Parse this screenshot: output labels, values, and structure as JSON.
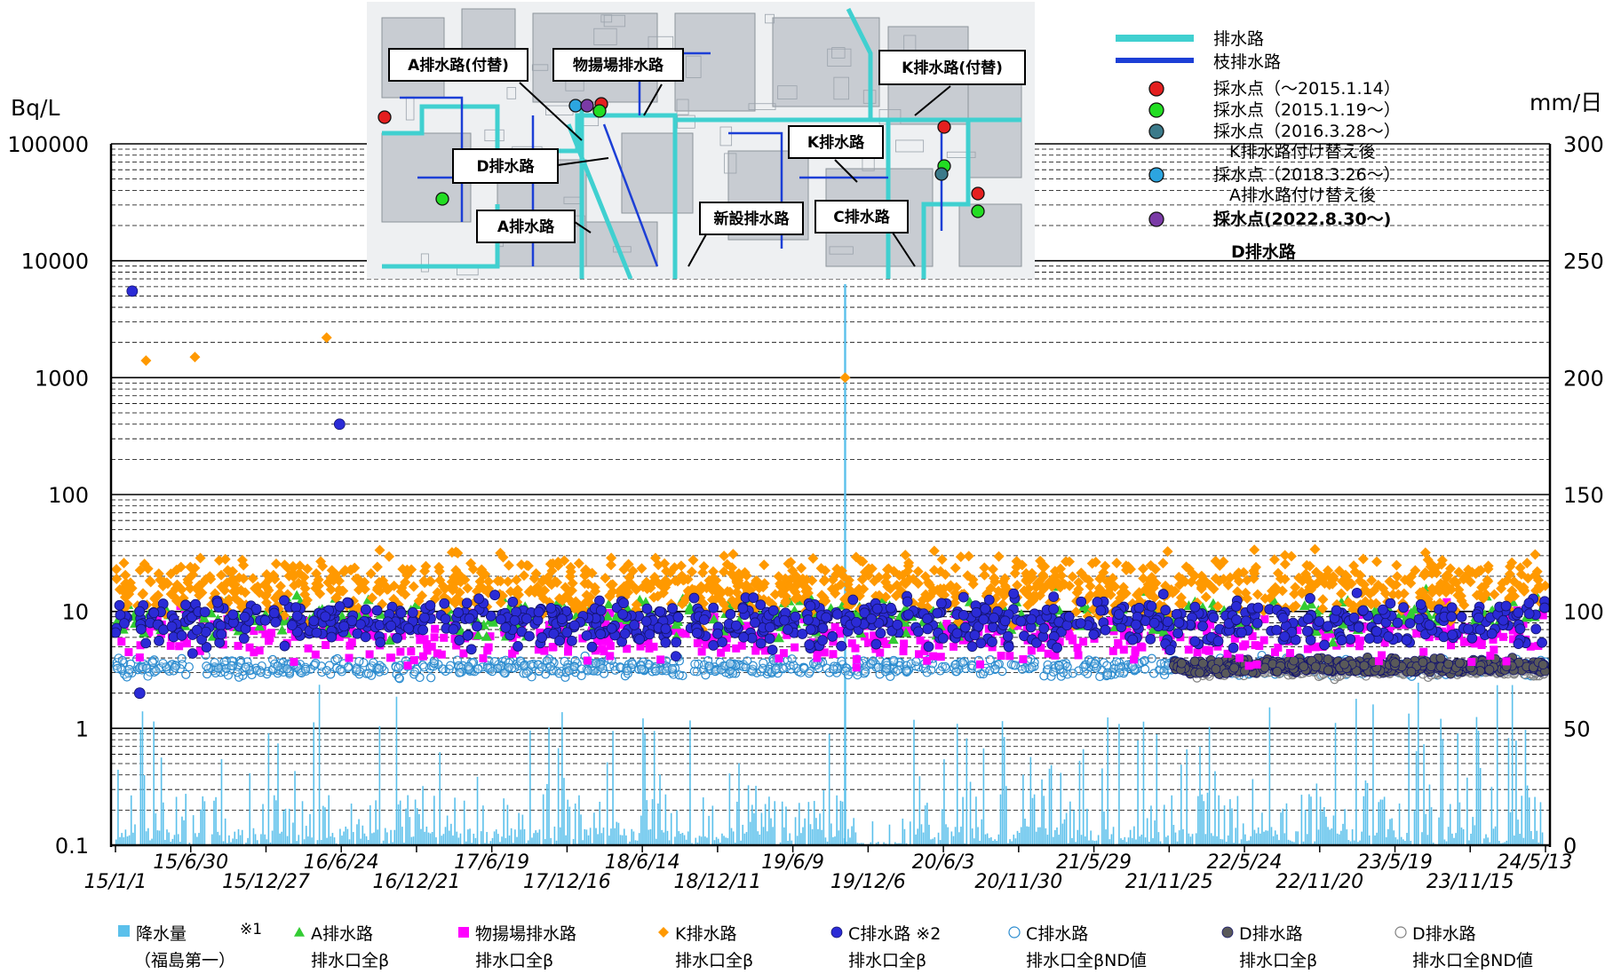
{
  "chart_data": {
    "type": "scatter",
    "y_unit_left": "Bq/L",
    "y_unit_right": "mm/日",
    "y_left_scale": "log",
    "y_left_range": [
      0.1,
      100000
    ],
    "y_left_ticks": [
      "100000",
      "10000",
      "1000",
      "100",
      "10",
      "1",
      "0.1"
    ],
    "y_right_range": [
      0,
      300
    ],
    "y_right_ticks": [
      "300",
      "250",
      "200",
      "150",
      "100",
      "50",
      "0"
    ],
    "x_range": [
      "2015-01-01",
      "2024-05-13"
    ],
    "x_ticks": [
      "15/1/1",
      "15/6/30",
      "15/12/27",
      "16/6/24",
      "16/12/21",
      "17/6/19",
      "17/12/16",
      "18/6/14",
      "18/12/11",
      "19/6/9",
      "19/12/6",
      "20/6/3",
      "20/11/30",
      "21/5/29",
      "21/11/25",
      "22/5/24",
      "22/11/20",
      "23/5/19",
      "23/11/15",
      "24/5/13"
    ],
    "grid": true,
    "legend_placement": "bottom",
    "series": [
      {
        "key": "rain",
        "name": "降水量",
        "name2": "（福島第一）",
        "marker": "bar",
        "color": "#5bc0eb",
        "axis": "right",
        "peak_value_mm": 240,
        "peak_date": "2019-10-12"
      },
      {
        "key": "A",
        "name": "A排水路",
        "name2": "排水口全β",
        "marker": "triangle",
        "color": "#33cc33"
      },
      {
        "key": "M",
        "name": "物揚場排水路",
        "name2": "排水口全β",
        "marker": "square",
        "color": "#ff00ff"
      },
      {
        "key": "K",
        "name": "K排水路",
        "name2": "排水口全β",
        "marker": "diamond",
        "color": "#ff9900"
      },
      {
        "key": "C",
        "name": "C排水路 ※2",
        "name2": "排水口全β",
        "marker": "circle",
        "color": "#2b2bd6"
      },
      {
        "key": "CND",
        "name": "C排水路",
        "name2": "排水口全βND値",
        "marker": "circle-open",
        "color": "#2a8bcf"
      },
      {
        "key": "D",
        "name": "D排水路",
        "name2": "排水口全β",
        "marker": "circle",
        "color": "#595959"
      },
      {
        "key": "DND",
        "name": "D排水路",
        "name2": "排水口全βND値",
        "marker": "circle-open",
        "color": "#808080"
      }
    ],
    "notable_points": [
      {
        "series": "C",
        "date": "2015-02-10",
        "value": 5500
      },
      {
        "series": "K",
        "date": "2016-05-20",
        "value": 2200
      },
      {
        "series": "K",
        "date": "2015-07-10",
        "value": 1500
      },
      {
        "series": "K",
        "date": "2015-03-15",
        "value": 1400
      },
      {
        "series": "K",
        "date": "2019-10-12",
        "value": 1000
      },
      {
        "series": "C",
        "date": "2016-06-20",
        "value": 400
      },
      {
        "series": "C",
        "date": "2015-02-28",
        "value": 2
      }
    ]
  },
  "legend_note": "※1",
  "inset_map": {
    "colors": {
      "main_drain": "#40d0d0",
      "branch_drain": "#1c3fd6"
    },
    "legend_lines": [
      {
        "label": "排水路",
        "color": "#40d0d0"
      },
      {
        "label": "枝排水路",
        "color": "#1c3fd6"
      }
    ],
    "legend_points": [
      {
        "label": "採水点（～2015.1.14）",
        "label2": "",
        "color": "#e41f1f"
      },
      {
        "label": "採水点（2015.1.19～）",
        "label2": "",
        "color": "#22dd22"
      },
      {
        "label": "採水点（2016.3.28～）",
        "label2": "K排水路付け替え後",
        "color": "#3b7a8a"
      },
      {
        "label": "採水点（2018.3.26～）",
        "label2": "A排水路付け替え後",
        "color": "#2ca5e0"
      },
      {
        "label": "採水点(2022.8.30～)",
        "label2": "",
        "color": "#7a3aa6"
      }
    ],
    "d_drain_label": "D排水路",
    "callouts": [
      {
        "key": "a_repl",
        "label": "A排水路(付替)"
      },
      {
        "key": "monoage",
        "label": "物揚場排水路"
      },
      {
        "key": "k_repl",
        "label": "K排水路(付替)"
      },
      {
        "key": "k",
        "label": "K排水路"
      },
      {
        "key": "d",
        "label": "D排水路"
      },
      {
        "key": "a",
        "label": "A排水路"
      },
      {
        "key": "new",
        "label": "新設排水路"
      },
      {
        "key": "c",
        "label": "C排水路"
      }
    ]
  }
}
